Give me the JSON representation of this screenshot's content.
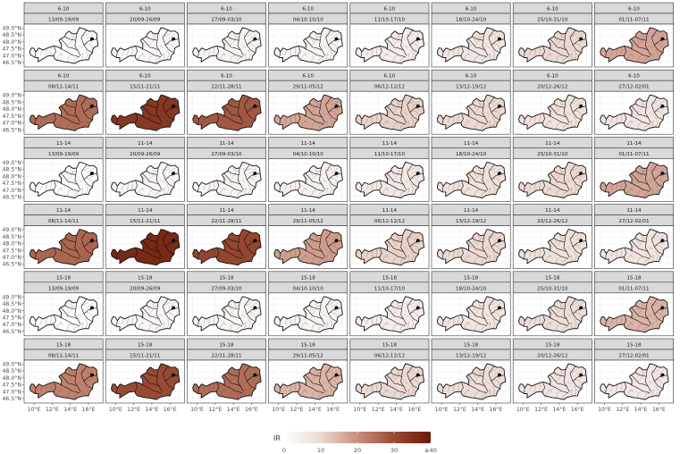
{
  "chart_data": {
    "type": "choropleth-facet-grid",
    "legend": {
      "title": "IR",
      "ticks": [
        "0",
        "10",
        "20",
        "30",
        "≥40"
      ],
      "range": [
        0,
        40
      ],
      "colors": [
        "#ffffff",
        "#ecd9d2",
        "#c98f7c",
        "#9a4a32",
        "#6b1a08"
      ],
      "placement": "bottom"
    },
    "y_ticks": [
      "49.0°N",
      "48.5°N",
      "48.0°N",
      "47.5°N",
      "47.0°N",
      "46.5°N"
    ],
    "x_ticks": [
      "10°E",
      "12°E",
      "14°E",
      "16°E"
    ],
    "weeks": [
      "13/09-19/09",
      "20/09-26/09",
      "27/09-03/10",
      "04/10-10/10",
      "11/10-17/10",
      "18/10-24/10",
      "25/10-31/10",
      "01/11-07/11",
      "08/11-14/11",
      "15/11-21/11",
      "22/11-28/11",
      "29/11-05/12",
      "06/12-12/12",
      "13/12-19/12",
      "20/12-26/12",
      "27/12-02/01"
    ],
    "groups": [
      {
        "age": "6-10",
        "intensity": [
          1,
          2,
          3,
          3,
          5,
          7,
          10,
          17,
          25,
          34,
          28,
          17,
          11,
          10,
          8,
          7
        ]
      },
      {
        "age": "11-14",
        "intensity": [
          1,
          2,
          3,
          4,
          6,
          8,
          10,
          17,
          26,
          37,
          31,
          18,
          11,
          10,
          8,
          7
        ]
      },
      {
        "age": "15-18",
        "intensity": [
          1,
          2,
          3,
          3,
          5,
          7,
          9,
          15,
          22,
          30,
          25,
          15,
          10,
          9,
          7,
          6
        ]
      }
    ],
    "grid": true
  }
}
